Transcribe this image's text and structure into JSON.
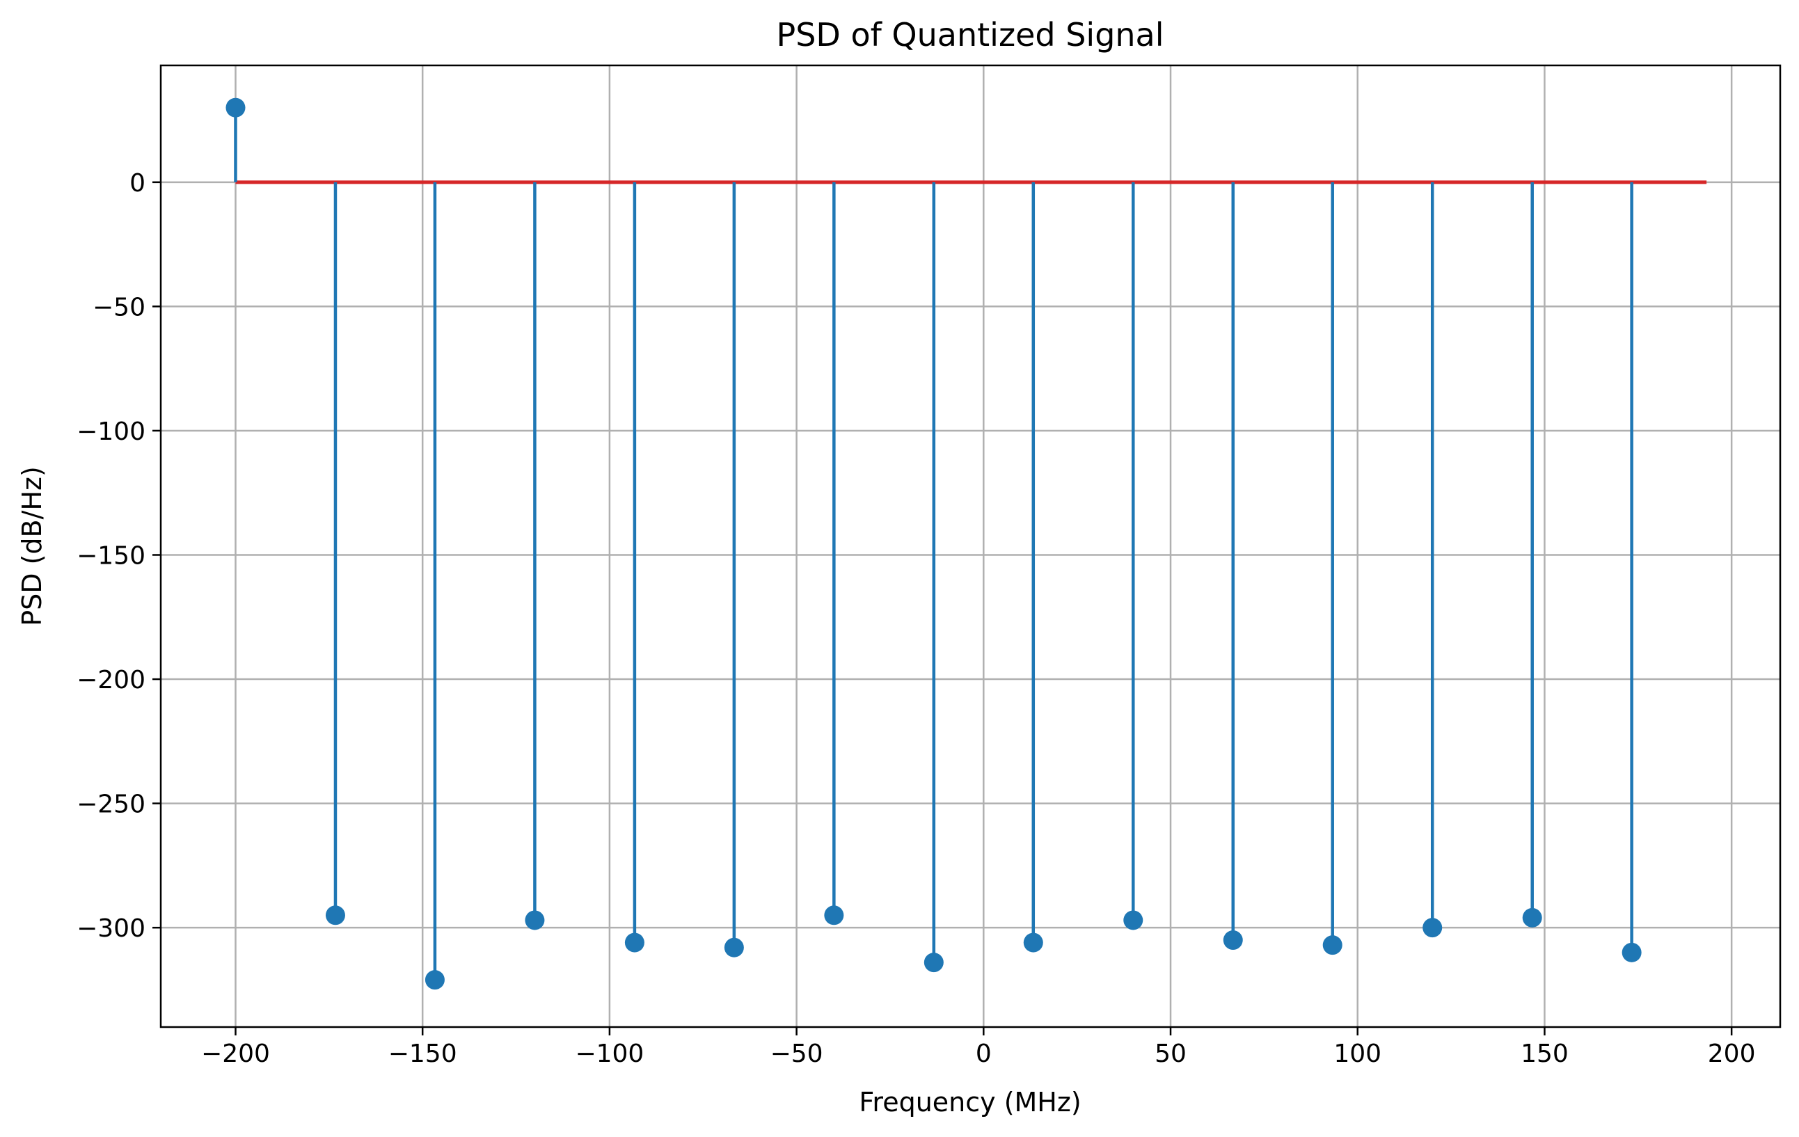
{
  "chart_data": {
    "type": "stem",
    "title": "PSD of Quantized Signal",
    "xlabel": "Frequency (MHz)",
    "ylabel": "PSD (dB/Hz)",
    "xlim": [
      -220,
      213
    ],
    "ylim": [
      -340,
      47
    ],
    "xticks": [
      -200,
      -150,
      -100,
      -50,
      0,
      50,
      100,
      150,
      200
    ],
    "yticks": [
      0,
      -50,
      -100,
      -150,
      -200,
      -250,
      -300
    ],
    "grid": true,
    "baseline": 0,
    "x": [
      -200,
      -173.3,
      -146.7,
      -120,
      -93.3,
      -66.7,
      -40,
      -13.3,
      13.3,
      40,
      66.7,
      93.3,
      120,
      146.7,
      173.3
    ],
    "values": [
      30,
      -295,
      -321,
      -297,
      -306,
      -308,
      -295,
      -314,
      -306,
      -297,
      -305,
      -307,
      -300,
      -296,
      -310
    ],
    "baseline_end": 193.3,
    "colors": {
      "stem": "#1f77b4",
      "baseline": "#d62728"
    }
  }
}
